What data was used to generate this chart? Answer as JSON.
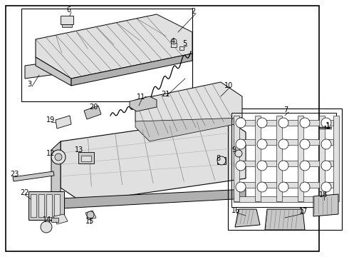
{
  "bg_color": "#ffffff",
  "line_color": "#000000",
  "gray_light": "#e0e0e0",
  "gray_mid": "#c8c8c8",
  "gray_dark": "#b0b0b0"
}
